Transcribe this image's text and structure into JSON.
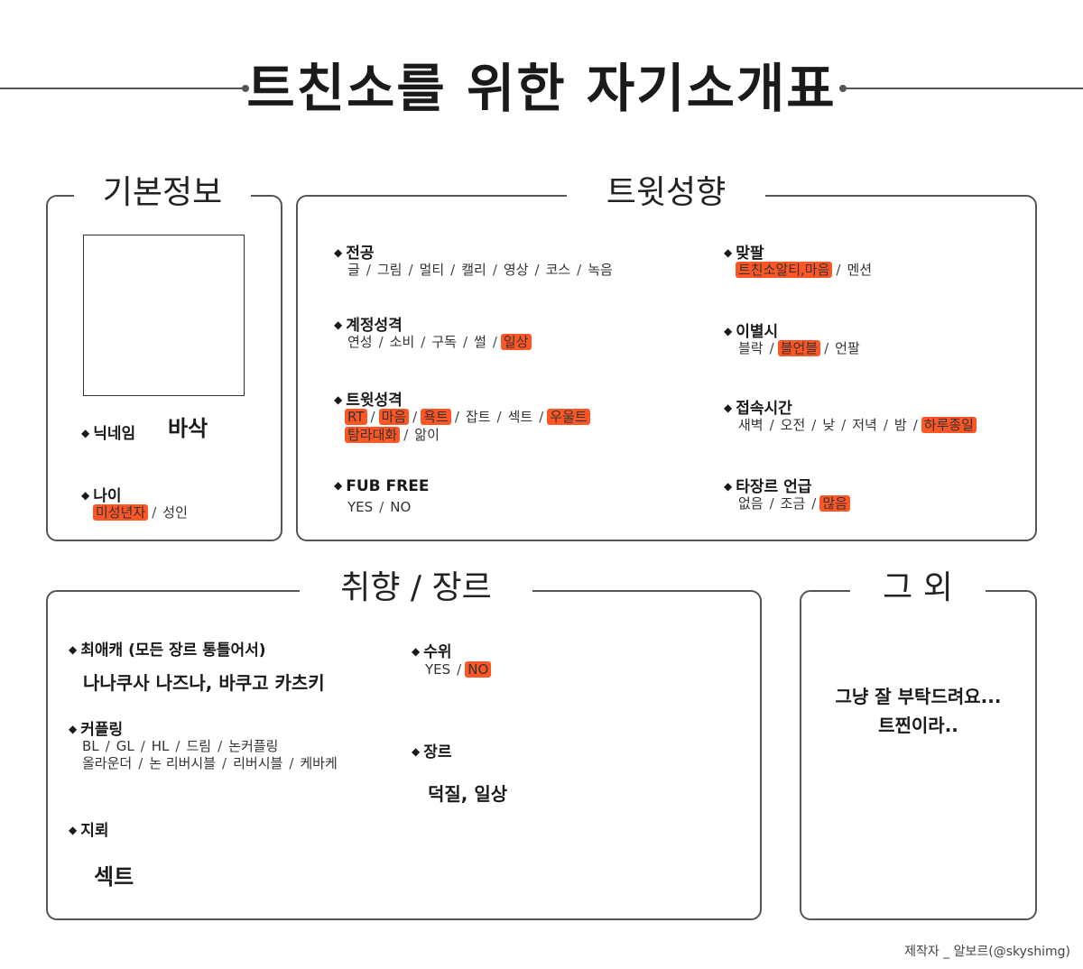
{
  "title": "트친소를 위한 자기소개표",
  "credit": "제작자 _ 알보르(@skyshimg)",
  "colors": {
    "highlight": "#ff5626",
    "border": "#555555"
  },
  "basic": {
    "heading": "기본정보",
    "nickname_label": "닉네임",
    "nickname_value": "바삭",
    "age_label": "나이",
    "age_options": [
      {
        "text": "미성년자",
        "selected": true
      },
      {
        "text": "성인",
        "selected": false
      }
    ]
  },
  "tweet": {
    "heading": "트윗성향",
    "major": {
      "label": "전공",
      "options": [
        {
          "text": "글",
          "selected": false
        },
        {
          "text": "그림",
          "selected": false
        },
        {
          "text": "멀티",
          "selected": false
        },
        {
          "text": "캘리",
          "selected": false
        },
        {
          "text": "영상",
          "selected": false
        },
        {
          "text": "코스",
          "selected": false
        },
        {
          "text": "녹음",
          "selected": false
        }
      ]
    },
    "account": {
      "label": "계정성격",
      "options": [
        {
          "text": "연성",
          "selected": false
        },
        {
          "text": "소비",
          "selected": false
        },
        {
          "text": "구독",
          "selected": false
        },
        {
          "text": "썰",
          "selected": false
        },
        {
          "text": "일상",
          "selected": true
        }
      ]
    },
    "tweetstyle": {
      "label": "트윗성격",
      "line1": [
        {
          "text": "RT",
          "selected": true
        },
        {
          "text": "마음",
          "selected": true
        },
        {
          "text": "욕트",
          "selected": true
        },
        {
          "text": "잡트",
          "selected": false
        },
        {
          "text": "섹트",
          "selected": false
        },
        {
          "text": "우울트",
          "selected": true
        }
      ],
      "line2": [
        {
          "text": "탐라대화",
          "selected": true
        },
        {
          "text": "앎이",
          "selected": false
        }
      ]
    },
    "fub": {
      "label": "FUB FREE",
      "options": [
        {
          "text": "YES",
          "selected": false
        },
        {
          "text": "NO",
          "selected": false
        }
      ]
    },
    "follow": {
      "label": "맞팔",
      "options": [
        {
          "text": "트친소알티,마음",
          "selected": true
        },
        {
          "text": "멘션",
          "selected": false
        }
      ]
    },
    "farewell": {
      "label": "이별시",
      "options": [
        {
          "text": "블락",
          "selected": false
        },
        {
          "text": "블언블",
          "selected": true
        },
        {
          "text": "언팔",
          "selected": false
        }
      ]
    },
    "time": {
      "label": "접속시간",
      "options": [
        {
          "text": "새벽",
          "selected": false
        },
        {
          "text": "오전",
          "selected": false
        },
        {
          "text": "낮",
          "selected": false
        },
        {
          "text": "저녁",
          "selected": false
        },
        {
          "text": "밤",
          "selected": false
        },
        {
          "text": "하루종일",
          "selected": true
        }
      ]
    },
    "othergenre": {
      "label": "타장르 언급",
      "options": [
        {
          "text": "없음",
          "selected": false
        },
        {
          "text": "조금",
          "selected": false
        },
        {
          "text": "많음",
          "selected": true
        }
      ]
    }
  },
  "taste": {
    "heading": "취향 / 장르",
    "fav_label": "최애캐 (모든 장르 통틀어서)",
    "fav_value": "나나쿠사 나즈나, 바쿠고 카츠키",
    "coupling": {
      "label": "커플링",
      "line1": [
        {
          "text": "BL",
          "selected": false
        },
        {
          "text": "GL",
          "selected": false
        },
        {
          "text": "HL",
          "selected": false
        },
        {
          "text": "드림",
          "selected": false
        },
        {
          "text": "논커플링",
          "selected": false
        }
      ],
      "line2": [
        {
          "text": "올라운더",
          "selected": false
        },
        {
          "text": "논 리버시블",
          "selected": false
        },
        {
          "text": "리버시블",
          "selected": false
        },
        {
          "text": "케바케",
          "selected": false
        }
      ]
    },
    "mine_label": "지뢰",
    "mine_value": "섹트",
    "rating": {
      "label": "수위",
      "options": [
        {
          "text": "YES",
          "selected": false
        },
        {
          "text": "NO",
          "selected": true
        }
      ]
    },
    "genre_label": "장르",
    "genre_value": "덕질, 일상"
  },
  "etc": {
    "heading": "그 외",
    "line1": "그냥 잘 부탁드려요...",
    "line2": "트찐이라.."
  }
}
